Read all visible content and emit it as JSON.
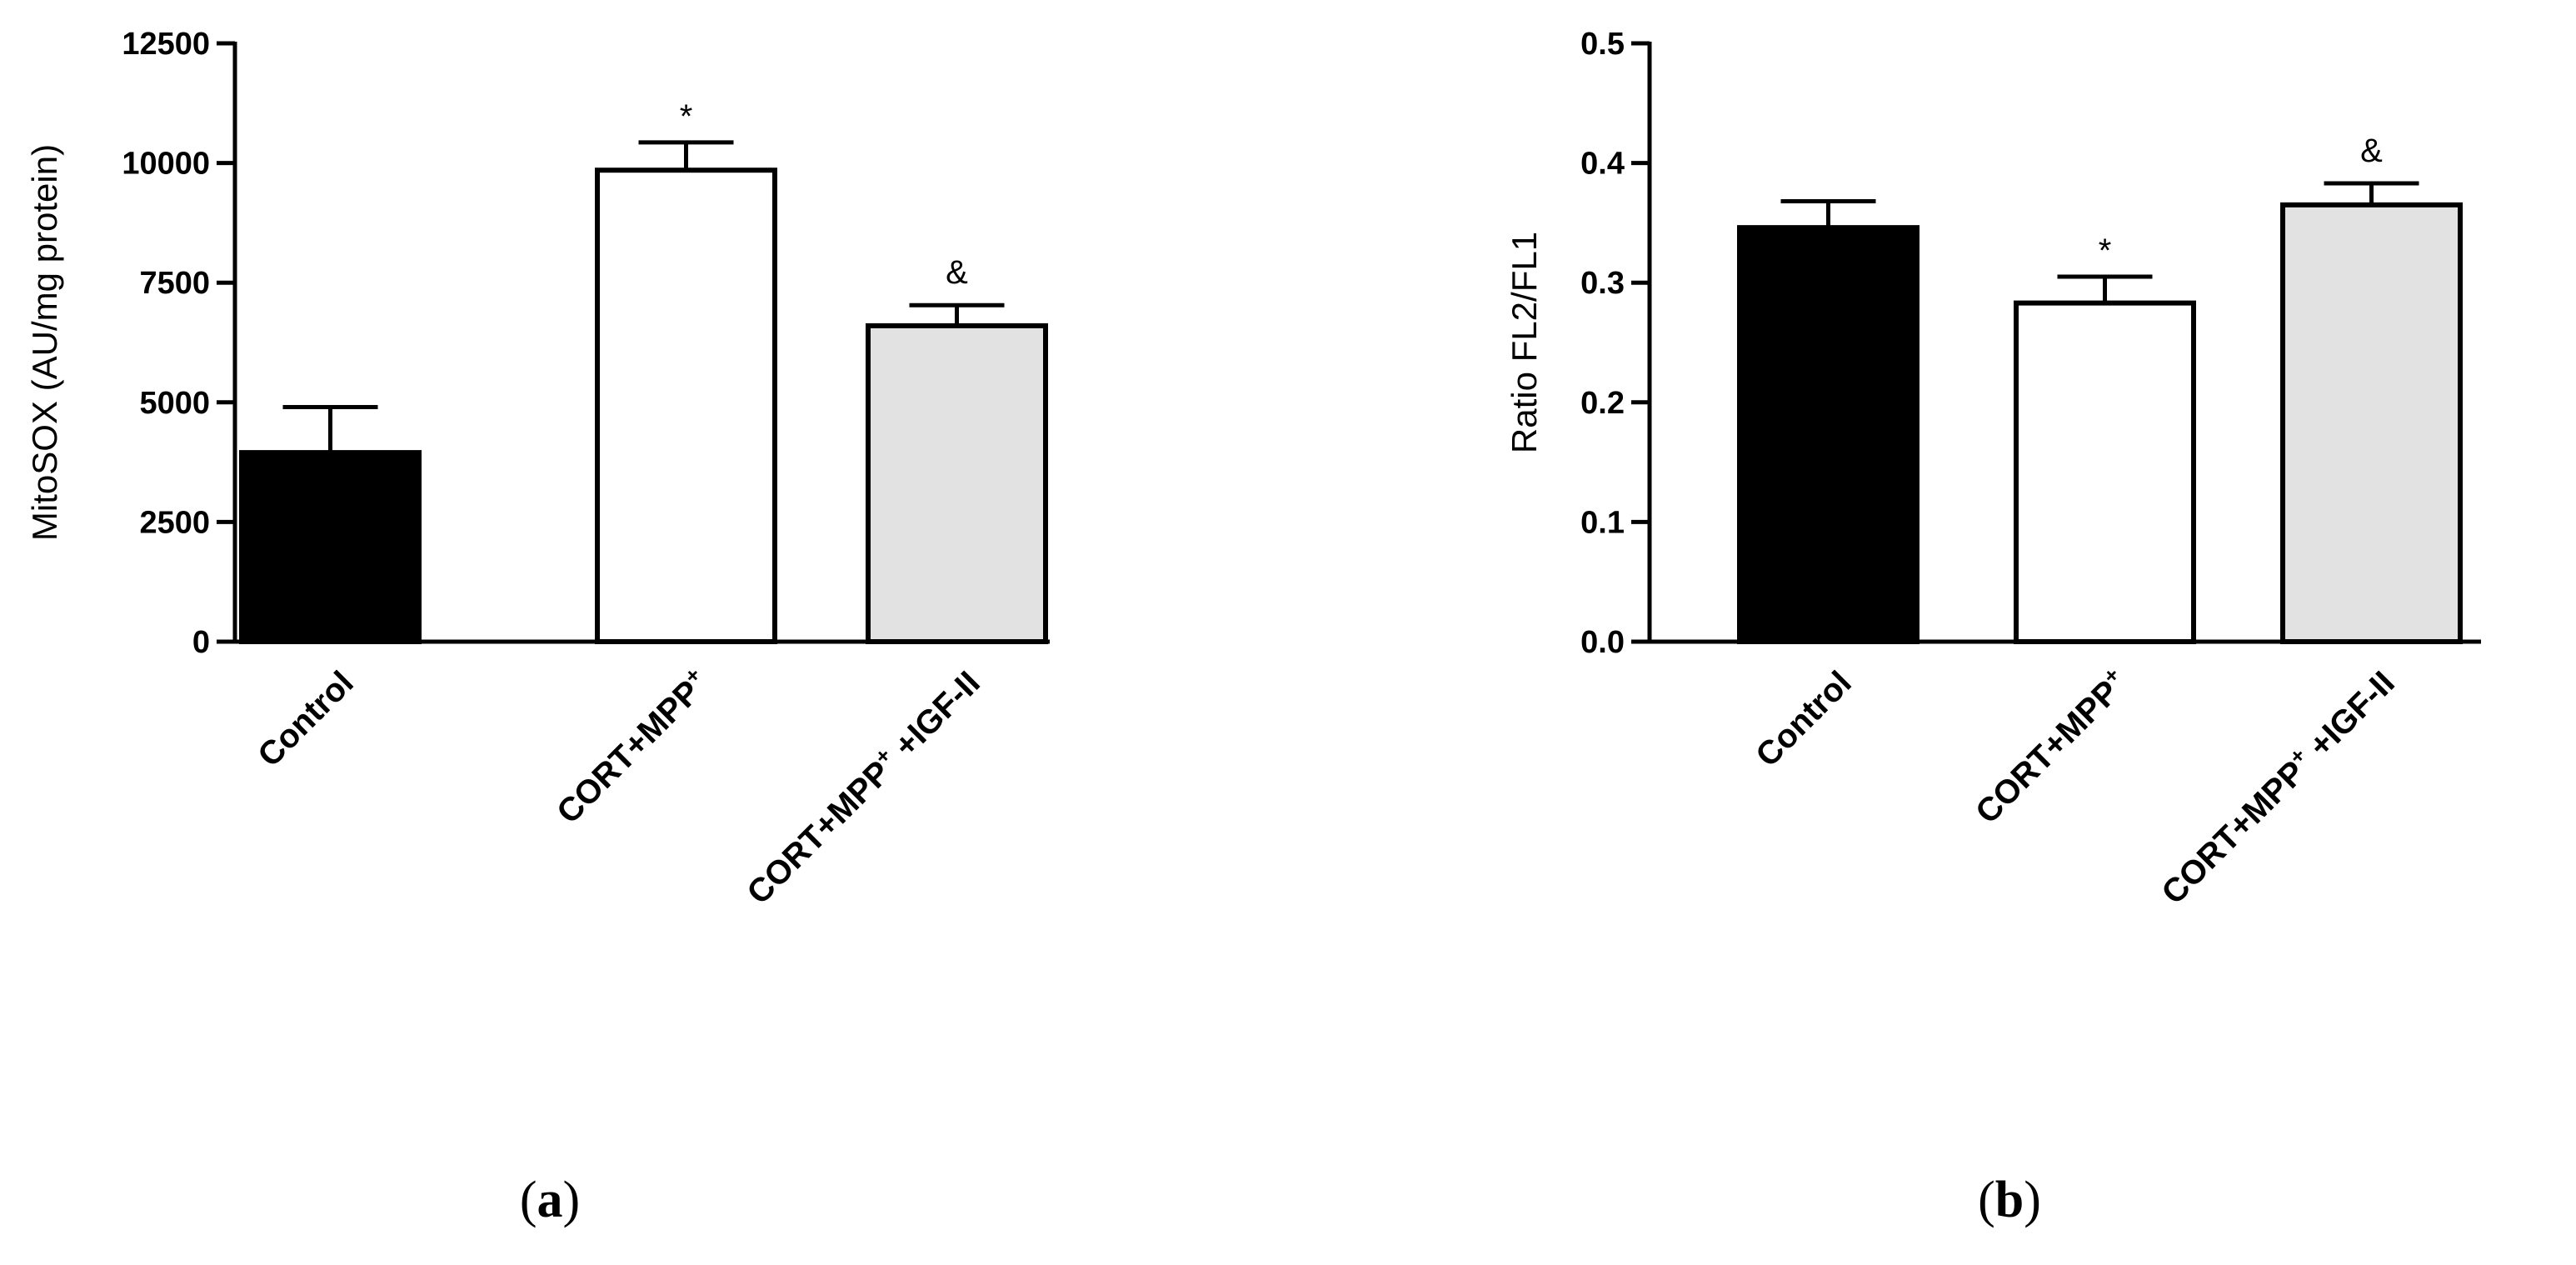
{
  "chart_data": [
    {
      "type": "bar",
      "panel_label": {
        "open": "(",
        "letter": "a",
        "close": ")"
      },
      "categories": [
        {
          "base": "Control",
          "sup": "",
          "tail": ""
        },
        {
          "base": "CORT+MPP",
          "sup": "+",
          "tail": ""
        },
        {
          "base": "CORT+MPP",
          "sup": "+",
          "tail": " +IGF-II"
        }
      ],
      "values": [
        3950,
        9850,
        6600
      ],
      "errors": [
        950,
        580,
        430
      ],
      "fills": [
        "#000000",
        "#ffffff",
        "#e2e2e2"
      ],
      "annotations": [
        "",
        "*",
        "&"
      ],
      "ylabel": "MitoSOX (AU/mg protein)",
      "xlabel": "",
      "ylim": [
        0,
        12500
      ],
      "yticks": [
        "0",
        "2500",
        "5000",
        "7500",
        "10000",
        "12500"
      ],
      "grid": false
    },
    {
      "type": "bar",
      "panel_label": {
        "open": "(",
        "letter": "b",
        "close": ")"
      },
      "categories": [
        {
          "base": "Control",
          "sup": "",
          "tail": ""
        },
        {
          "base": "CORT+MPP",
          "sup": "+",
          "tail": ""
        },
        {
          "base": "CORT+MPP",
          "sup": "+",
          "tail": " +IGF-II"
        }
      ],
      "values": [
        0.346,
        0.283,
        0.365
      ],
      "errors": [
        0.022,
        0.022,
        0.018
      ],
      "fills": [
        "#000000",
        "#ffffff",
        "#e2e2e2"
      ],
      "annotations": [
        "",
        "*",
        "&"
      ],
      "ylabel": "Ratio FL2/FL1",
      "xlabel": "",
      "ylim": [
        0,
        0.5
      ],
      "yticks": [
        "0.0",
        "0.1",
        "0.2",
        "0.3",
        "0.4",
        "0.5"
      ],
      "grid": false
    }
  ]
}
